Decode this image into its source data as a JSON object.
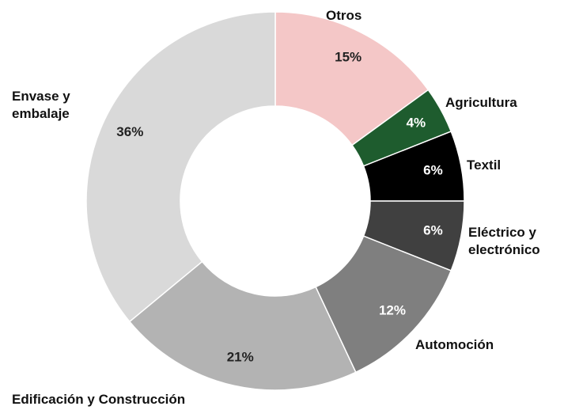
{
  "chart_data": {
    "type": "donut",
    "categories": [
      "Otros",
      "Agricultura",
      "Textil",
      "Eléctrico y electrónico",
      "Automoción",
      "Edificación y Construcción",
      "Envase y embalaje"
    ],
    "values": [
      15,
      4,
      6,
      6,
      12,
      21,
      36
    ],
    "value_labels": [
      "15%",
      "4%",
      "6%",
      "6%",
      "12%",
      "21%",
      "36%"
    ],
    "colors": [
      "#f4c7c7",
      "#1e5c2e",
      "#000000",
      "#404040",
      "#7f7f7f",
      "#b3b3b3",
      "#d9d9d9"
    ]
  }
}
